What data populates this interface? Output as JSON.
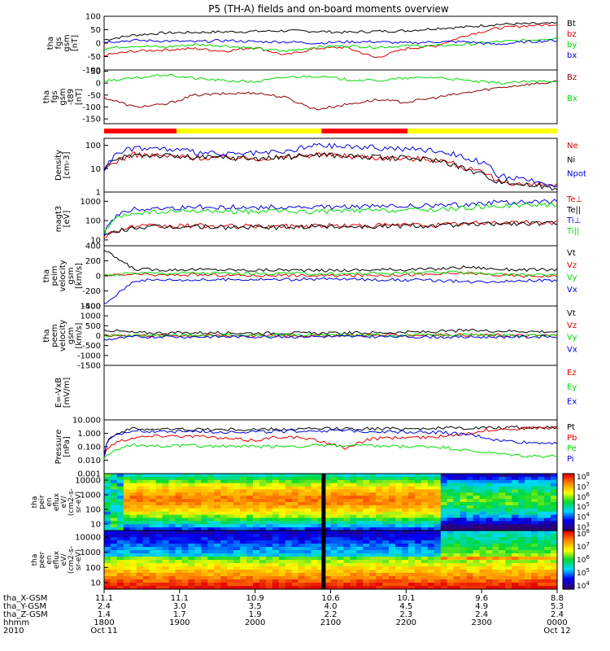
{
  "title": "P5 (TH-A) fields and on-board moments overview",
  "chart_data": [
    {
      "type": "line",
      "panel": "fgs",
      "ylabel_lines": [
        "tha",
        "fgs",
        "gsm",
        "[nT]"
      ],
      "ytick_labels": [
        "100",
        "50",
        "0",
        "-50",
        "-100"
      ],
      "ylim": [
        -100,
        100
      ],
      "series": [
        {
          "name": "Bt",
          "color": "#000000",
          "values": [
            12,
            30,
            38,
            40,
            42,
            44,
            46,
            44,
            40,
            44,
            46,
            55,
            60,
            70,
            72,
            73
          ]
        },
        {
          "name": "bz",
          "color": "#dd0000",
          "values": [
            -45,
            -30,
            -25,
            -20,
            -30,
            -15,
            -45,
            -20,
            -15,
            -55,
            -20,
            -10,
            30,
            55,
            65,
            70
          ]
        },
        {
          "name": "by",
          "color": "#00dd00",
          "values": [
            -20,
            -10,
            -15,
            -5,
            -10,
            -20,
            -30,
            -15,
            -10,
            -15,
            -10,
            -10,
            -5,
            5,
            10,
            20
          ]
        },
        {
          "name": "bx",
          "color": "#0000dd",
          "values": [
            5,
            10,
            8,
            5,
            10,
            5,
            5,
            0,
            5,
            5,
            0,
            5,
            5,
            -5,
            5,
            10
          ]
        }
      ]
    },
    {
      "type": "line",
      "panel": "fgs-t89",
      "ylabel_lines": [
        "tha",
        "fgs",
        "gsm",
        "-t89",
        "[nT]"
      ],
      "ytick_labels": [
        "50",
        "0",
        "-50",
        "-100",
        "-150"
      ],
      "ylim": [
        -170,
        55
      ],
      "series": [
        {
          "name": "Bz",
          "color": "#8b0000",
          "values": [
            -60,
            -100,
            -90,
            -50,
            -45,
            -40,
            -60,
            -110,
            -90,
            -70,
            -80,
            -60,
            -40,
            -20,
            -5,
            5
          ]
        },
        {
          "name": "Bx",
          "color": "#00dd00",
          "values": [
            10,
            20,
            35,
            20,
            10,
            5,
            25,
            30,
            15,
            10,
            20,
            25,
            10,
            0,
            5,
            10
          ]
        }
      ]
    },
    {
      "type": "line",
      "panel": "density",
      "ylabel_lines": [
        "Density",
        "[cm-3]"
      ],
      "ytick_labels": [
        "100",
        "10",
        "1"
      ],
      "yscale": "log",
      "ylim": [
        1,
        200
      ],
      "series": [
        {
          "name": "Ne",
          "color": "#dd0000",
          "values": [
            8,
            40,
            35,
            30,
            30,
            28,
            30,
            40,
            35,
            30,
            28,
            25,
            10,
            3,
            2,
            2
          ]
        },
        {
          "name": "Ni",
          "color": "#000000",
          "values": [
            8,
            42,
            36,
            30,
            30,
            28,
            30,
            42,
            36,
            30,
            28,
            24,
            9,
            3,
            2,
            1.5
          ]
        },
        {
          "name": "Npot",
          "color": "#0000dd",
          "values": [
            10,
            80,
            70,
            50,
            40,
            45,
            50,
            100,
            90,
            80,
            70,
            60,
            30,
            5,
            3,
            2
          ]
        }
      ]
    },
    {
      "type": "line",
      "panel": "temperature",
      "ylabel_lines": [
        "magt3",
        "[eV]"
      ],
      "ytick_labels": [
        "1000",
        "100",
        "10"
      ],
      "yscale": "log",
      "ylim": [
        5,
        3000
      ],
      "series": [
        {
          "name": "Te⊥",
          "color": "#dd0000",
          "values": [
            15,
            50,
            50,
            55,
            50,
            50,
            50,
            55,
            55,
            55,
            60,
            60,
            70,
            80,
            80,
            80
          ]
        },
        {
          "name": "Te||",
          "color": "#000000",
          "values": [
            14,
            45,
            45,
            50,
            45,
            45,
            45,
            50,
            50,
            50,
            55,
            55,
            60,
            70,
            70,
            70
          ]
        },
        {
          "name": "Ti⊥",
          "color": "#0000dd",
          "values": [
            20,
            400,
            450,
            500,
            500,
            480,
            500,
            480,
            520,
            540,
            560,
            600,
            700,
            900,
            900,
            1000
          ]
        },
        {
          "name": "Ti||",
          "color": "#00dd00",
          "values": [
            18,
            250,
            280,
            300,
            300,
            290,
            300,
            290,
            320,
            330,
            350,
            380,
            450,
            600,
            600,
            700
          ]
        }
      ]
    },
    {
      "type": "line",
      "panel": "peim-velocity",
      "ylabel_lines": [
        "tha",
        "peim",
        "velocity",
        "gsm",
        "[km/s]"
      ],
      "ytick_labels": [
        "400",
        "200",
        "0",
        "-200",
        "-400"
      ],
      "ylim": [
        -400,
        400
      ],
      "series": [
        {
          "name": "Vt",
          "color": "#000000",
          "values": [
            340,
            90,
            80,
            85,
            80,
            75,
            80,
            70,
            75,
            80,
            85,
            90,
            120,
            90,
            80,
            85
          ]
        },
        {
          "name": "Vz",
          "color": "#dd0000",
          "values": [
            0,
            20,
            10,
            15,
            10,
            5,
            10,
            0,
            5,
            10,
            15,
            20,
            40,
            10,
            0,
            0
          ]
        },
        {
          "name": "Vy",
          "color": "#00dd00",
          "values": [
            0,
            40,
            35,
            40,
            35,
            30,
            35,
            25,
            30,
            35,
            40,
            40,
            50,
            20,
            10,
            15
          ]
        },
        {
          "name": "Vx",
          "color": "#0000dd",
          "values": [
            -380,
            -60,
            -50,
            -55,
            -50,
            -45,
            -50,
            -40,
            -45,
            -50,
            -55,
            -60,
            -80,
            -70,
            -60,
            -60
          ]
        }
      ]
    },
    {
      "type": "line",
      "panel": "peem-velocity",
      "ylabel_lines": [
        "tha",
        "peem",
        "velocity",
        "gsm",
        "[km/s]"
      ],
      "ytick_labels": [
        "1500",
        "1000",
        "500",
        "0",
        "-500",
        "-1000",
        "-1500"
      ],
      "ylim": [
        -1500,
        1500
      ],
      "series": [
        {
          "name": "Vt",
          "color": "#000000",
          "values": [
            300,
            150,
            140,
            150,
            140,
            130,
            140,
            120,
            130,
            150,
            170,
            200,
            260,
            240,
            220,
            200
          ]
        },
        {
          "name": "Vz",
          "color": "#dd0000",
          "values": [
            0,
            20,
            10,
            20,
            10,
            0,
            10,
            0,
            10,
            20,
            20,
            30,
            40,
            20,
            10,
            10
          ]
        },
        {
          "name": "Vy",
          "color": "#00dd00",
          "values": [
            0,
            30,
            20,
            25,
            20,
            15,
            20,
            10,
            15,
            20,
            25,
            30,
            40,
            30,
            20,
            20
          ]
        },
        {
          "name": "Vx",
          "color": "#0000dd",
          "values": [
            -200,
            -60,
            -50,
            -55,
            -50,
            -45,
            -50,
            -40,
            -45,
            -50,
            -55,
            -60,
            -70,
            -60,
            -55,
            -55
          ]
        }
      ]
    },
    {
      "type": "line",
      "panel": "efield",
      "ylabel_lines": [
        "E=-VxB",
        "[mV/m]"
      ],
      "ytick_labels": [],
      "series": [
        {
          "name": "Ez",
          "color": "#dd0000",
          "values": []
        },
        {
          "name": "Ey",
          "color": "#00dd00",
          "values": []
        },
        {
          "name": "Ex",
          "color": "#0000dd",
          "values": []
        }
      ]
    },
    {
      "type": "line",
      "panel": "pressure",
      "ylabel_lines": [
        "Pressure",
        "[nPa]"
      ],
      "ytick_labels": [
        "10.000",
        "1.000",
        "0.100",
        "0.010",
        "0.001"
      ],
      "yscale": "log",
      "ylim": [
        0.001,
        10
      ],
      "series": [
        {
          "name": "Pt",
          "color": "#000000",
          "values": [
            0.03,
            2.2,
            2.0,
            2.0,
            1.9,
            1.9,
            2.0,
            2.1,
            2.2,
            2.2,
            2.3,
            2.4,
            2.5,
            2.6,
            2.7,
            2.8
          ]
        },
        {
          "name": "Pb",
          "color": "#dd0000",
          "values": [
            0.02,
            0.5,
            0.7,
            0.6,
            0.4,
            0.3,
            0.6,
            0.3,
            0.05,
            0.4,
            0.5,
            0.5,
            1.0,
            2.0,
            2.4,
            2.6
          ]
        },
        {
          "name": "Pe",
          "color": "#00dd00",
          "values": [
            0.01,
            0.13,
            0.12,
            0.12,
            0.11,
            0.1,
            0.11,
            0.12,
            0.12,
            0.11,
            0.1,
            0.1,
            0.05,
            0.03,
            0.02,
            0.02
          ]
        },
        {
          "name": "Pi",
          "color": "#0000dd",
          "values": [
            0.02,
            1.5,
            1.4,
            1.4,
            1.3,
            1.3,
            1.4,
            1.6,
            1.5,
            1.4,
            1.3,
            1.2,
            0.8,
            0.3,
            0.2,
            0.2
          ]
        }
      ]
    },
    {
      "type": "heatmap",
      "panel": "peir-eflux",
      "ylabel_lines": [
        "tha",
        "peir",
        "en",
        "eflux",
        "eV/",
        "(cm2-s-",
        "sr-eV)"
      ],
      "ytick_labels": [
        "10000",
        "1000",
        "100",
        "10"
      ],
      "yscale": "log",
      "colorbar_labels": [
        "10^8",
        "10^7",
        "10^6",
        "10^5",
        "10^4",
        "10^3"
      ]
    },
    {
      "type": "heatmap",
      "panel": "peer-eflux",
      "ylabel_lines": [
        "tha",
        "peer",
        "en",
        "eflux",
        "eV/",
        "(cm2-s-",
        "sr-eV)"
      ],
      "ytick_labels": [
        "10000",
        "1000",
        "100",
        "10"
      ],
      "yscale": "log",
      "colorbar_labels": [
        "10^8",
        "10^7",
        "10^6",
        "10^5",
        "10^4"
      ]
    }
  ],
  "mode_bar": {
    "segments": [
      {
        "start": 0.0,
        "end": 0.16,
        "color": "#ff0000"
      },
      {
        "start": 0.16,
        "end": 0.48,
        "color": "#ffff00"
      },
      {
        "start": 0.48,
        "end": 0.67,
        "color": "#ff0000"
      },
      {
        "start": 0.67,
        "end": 1.0,
        "color": "#ffff00"
      }
    ]
  },
  "footer": {
    "row_labels": [
      "tha_X-GSM",
      "tha_Y-GSM",
      "tha_Z-GSM",
      "hhmm",
      "2010"
    ],
    "columns": [
      {
        "values": [
          "11.1",
          "2.4",
          "1.4",
          "1800",
          "Oct 11"
        ]
      },
      {
        "values": [
          "11.1",
          "3.0",
          "1.7",
          "1900",
          ""
        ]
      },
      {
        "values": [
          "10.9",
          "3.5",
          "1.9",
          "2000",
          ""
        ]
      },
      {
        "values": [
          "10.6",
          "4.0",
          "2.2",
          "2100",
          ""
        ]
      },
      {
        "values": [
          "10.1",
          "4.5",
          "2.3",
          "2200",
          ""
        ]
      },
      {
        "values": [
          "9.6",
          "4.9",
          "2.4",
          "2300",
          ""
        ]
      },
      {
        "values": [
          "8.8",
          "5.3",
          "2.4",
          "0000",
          "Oct 12"
        ]
      }
    ]
  }
}
